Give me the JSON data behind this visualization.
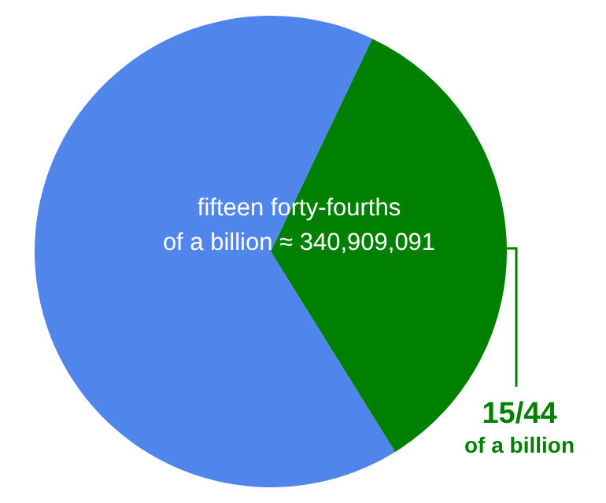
{
  "chart_data": {
    "type": "pie",
    "categories": [
      null,
      "15/44\nof a billion"
    ],
    "values": [
      65.91,
      34.09
    ],
    "colors": [
      "#5086ec",
      "#008000"
    ],
    "annotations": [
      "fifteen forty-fourths\nof a billion ≈ 340,909,091"
    ]
  }
}
